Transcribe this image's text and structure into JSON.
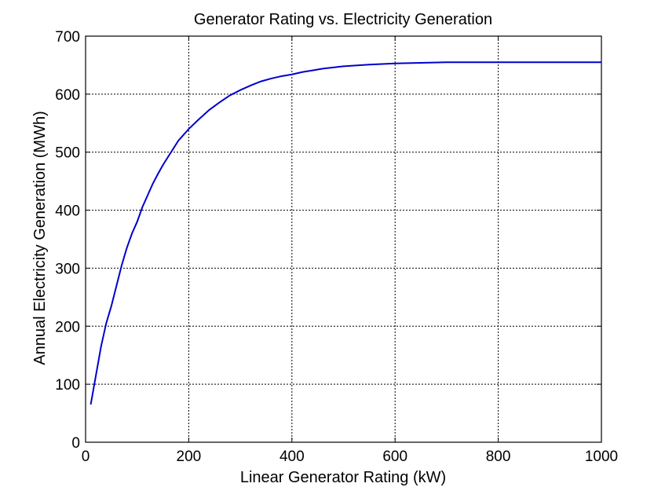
{
  "chart_data": {
    "type": "line",
    "title": "Generator Rating vs. Electricity Generation",
    "xlabel": "Linear Generator Rating (kW)",
    "ylabel": "Annual Electricity Generation (MWh)",
    "xlim": [
      0,
      1000
    ],
    "ylim": [
      0,
      700
    ],
    "xticks": [
      0,
      200,
      400,
      600,
      800,
      1000
    ],
    "yticks": [
      0,
      100,
      200,
      300,
      400,
      500,
      600,
      700
    ],
    "xtick_labels": [
      "0",
      "200",
      "400",
      "600",
      "800",
      "1000"
    ],
    "ytick_labels": [
      "0",
      "100",
      "200",
      "300",
      "400",
      "500",
      "600",
      "700"
    ],
    "grid": true,
    "line_color": "#0000cc",
    "series": [
      {
        "x": [
          10,
          20,
          30,
          40,
          50,
          60,
          70,
          80,
          90,
          100,
          110,
          120,
          130,
          140,
          150,
          160,
          170,
          180,
          200,
          220,
          240,
          260,
          280,
          300,
          320,
          340,
          360,
          380,
          400,
          420,
          440,
          460,
          480,
          500,
          550,
          600,
          650,
          700,
          750,
          800,
          850,
          900,
          950,
          1000
        ],
        "y": [
          65,
          115,
          165,
          205,
          235,
          270,
          305,
          335,
          360,
          380,
          405,
          425,
          445,
          462,
          478,
          492,
          506,
          520,
          540,
          557,
          573,
          586,
          598,
          607,
          615,
          622,
          627,
          631,
          634,
          638,
          641,
          644,
          646,
          648,
          651,
          653,
          654,
          655,
          655,
          655,
          655,
          655,
          655,
          655
        ]
      }
    ]
  }
}
